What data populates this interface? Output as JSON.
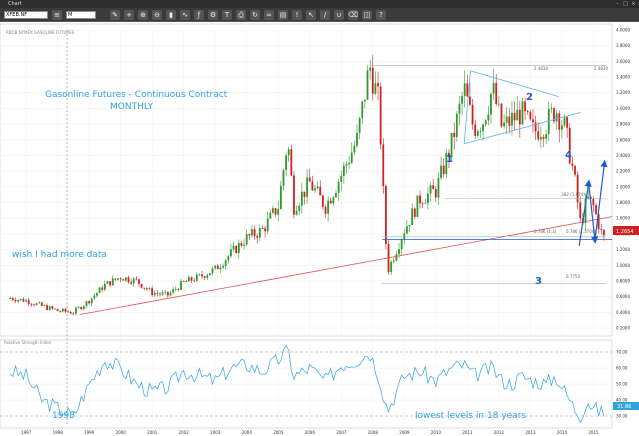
{
  "window": {
    "title": "Chart"
  },
  "toolbar": {
    "symbol": "XFEB.NF",
    "timeframe": "M"
  },
  "chart_header": {
    "description": "RBOB NYMEX GASOLINE FUTURES"
  },
  "annotations": {
    "title_line1": "Gasonline Futures - Continuous Contract",
    "title_line2": "MONTHLY",
    "wish": "wish I had more data",
    "year_1998": "1998",
    "lowest": "lowest levels in 18 years"
  },
  "labels": {
    "wave1": "1",
    "wave2": "2",
    "wave3": "3",
    "wave4": "4",
    "fib_top": "2.4830",
    "fib_top_right": "2.4830",
    "fib_mid": "0.786 (1.3704)",
    "fib_small": "0.786 (1.3)",
    "fib_bottom": "0.7750",
    "fib_382": ".382 (1.674)"
  },
  "indicator": {
    "name": "Relative Strength Index"
  },
  "price_axis": [
    "4.0000",
    "3.8000",
    "3.6000",
    "3.4000",
    "3.2000",
    "3.0000",
    "2.8000",
    "2.6000",
    "2.4000",
    "2.2000",
    "2.0000",
    "1.8000",
    "1.6000",
    "1.4000",
    "1.2000",
    "1.0000",
    "0.8000",
    "0.6000",
    "0.4000",
    "0.2000"
  ],
  "current_price": "1.2654",
  "rsi_axis": [
    "70.00",
    "60.00",
    "50.00",
    "40.00",
    "30.00"
  ],
  "rsi_current": "31.86",
  "time_axis": [
    "1997",
    "1998",
    "1999",
    "2000",
    "2001",
    "2002",
    "2003",
    "2004",
    "2005",
    "2006",
    "2007",
    "2008",
    "2009",
    "2010",
    "2011",
    "2012",
    "2013",
    "2014",
    "2015"
  ],
  "colors": {
    "up": "#2c9a2c",
    "down": "#d02020",
    "accent": "#2da3e0",
    "wave": "#1f5bc8",
    "trend": "#e05050",
    "rsi": "#2da3e0"
  },
  "chart_data": {
    "type": "line",
    "x_label": "",
    "y_label": "",
    "x": [
      1997.0,
      1997.5,
      1998.0,
      1998.5,
      1999.0,
      1999.5,
      2000.0,
      2000.5,
      2001.0,
      2001.5,
      2002.0,
      2002.5,
      2003.0,
      2003.5,
      2004.0,
      2004.5,
      2005.0,
      2005.5,
      2005.8,
      2006.0,
      2006.5,
      2007.0,
      2007.5,
      2008.0,
      2008.4,
      2008.7,
      2008.9,
      2009.0,
      2009.5,
      2010.0,
      2010.5,
      2011.0,
      2011.4,
      2011.7,
      2012.0,
      2012.3,
      2012.6,
      2012.9,
      2013.2,
      2013.6,
      2014.0,
      2014.3,
      2014.6,
      2014.9,
      2015.1,
      2015.3,
      2015.5,
      2015.8
    ],
    "series": [
      {
        "values": [
          0.58,
          0.55,
          0.48,
          0.42,
          0.4,
          0.55,
          0.75,
          0.85,
          0.8,
          0.65,
          0.62,
          0.78,
          0.85,
          0.95,
          1.15,
          1.35,
          1.45,
          1.75,
          2.6,
          1.75,
          2.05,
          1.75,
          2.15,
          2.6,
          3.55,
          3.05,
          1.35,
          0.95,
          1.45,
          1.85,
          1.95,
          2.55,
          3.25,
          2.75,
          2.85,
          3.25,
          2.75,
          2.85,
          2.95,
          2.7,
          2.8,
          3.0,
          2.75,
          2.1,
          1.5,
          1.85,
          1.75,
          1.35
        ]
      }
    ],
    "rsi_values": [
      58,
      55,
      40,
      35,
      30,
      50,
      65,
      60,
      50,
      45,
      48,
      58,
      55,
      52,
      60,
      62,
      58,
      65,
      72,
      55,
      60,
      52,
      62,
      65,
      70,
      55,
      38,
      35,
      55,
      58,
      52,
      60,
      62,
      55,
      58,
      60,
      52,
      50,
      55,
      52,
      50,
      55,
      45,
      35,
      30,
      40,
      35,
      31.86
    ],
    "ylim": [
      0.2,
      4.0
    ],
    "rsi_ylim": [
      25,
      75
    ]
  }
}
